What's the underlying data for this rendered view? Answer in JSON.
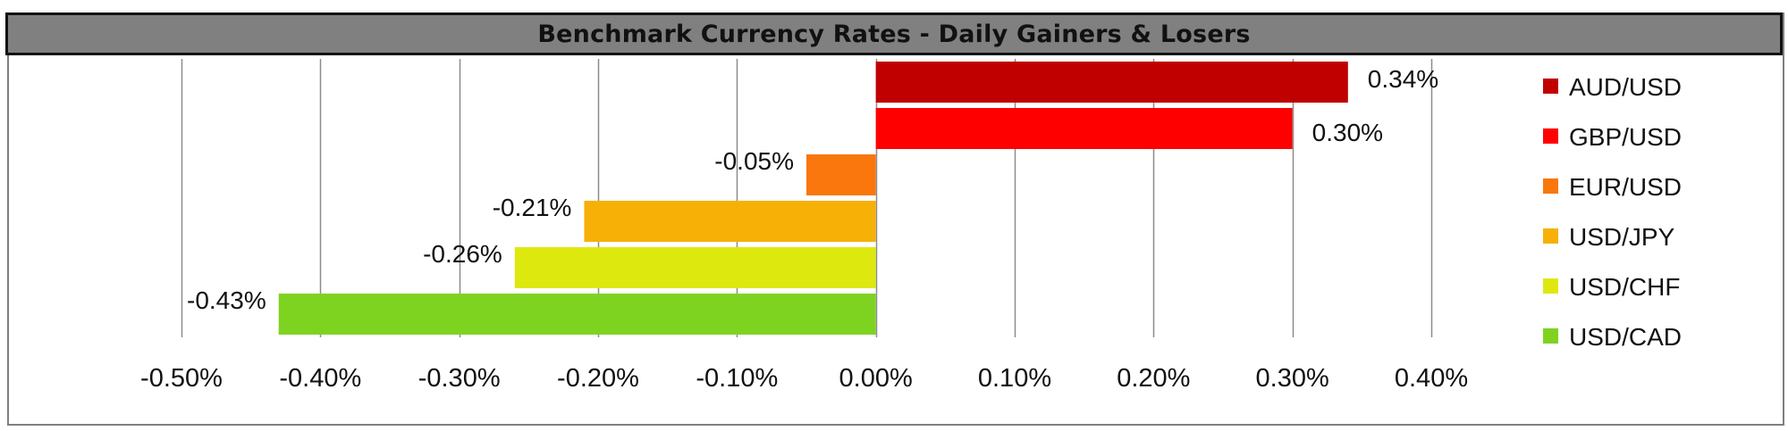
{
  "title": "Benchmark Currency Rates - Daily Gainers & Losers",
  "chart_data": {
    "type": "bar",
    "orientation": "horizontal",
    "title": "Benchmark Currency Rates - Daily Gainers & Losers",
    "categories": [
      "AUD/USD",
      "GBP/USD",
      "EUR/USD",
      "USD/JPY",
      "USD/CHF",
      "USD/CAD"
    ],
    "values": [
      0.34,
      0.3,
      -0.05,
      -0.21,
      -0.26,
      -0.43
    ],
    "value_labels": [
      "0.34%",
      "0.30%",
      "-0.05%",
      "-0.21%",
      "-0.26%",
      "-0.43%"
    ],
    "colors": [
      "#c00000",
      "#ff0000",
      "#f9770d",
      "#f7b006",
      "#dde90e",
      "#7ed321"
    ],
    "xlim": [
      -0.5,
      0.4
    ],
    "x_ticks": [
      -0.5,
      -0.4,
      -0.3,
      -0.2,
      -0.1,
      0.0,
      0.1,
      0.2,
      0.3,
      0.4
    ],
    "x_tick_labels": [
      "-0.50%",
      "-0.40%",
      "-0.30%",
      "-0.20%",
      "-0.10%",
      "0.00%",
      "0.10%",
      "0.20%",
      "0.30%",
      "0.40%"
    ],
    "xlabel": "",
    "ylabel": "",
    "grid": "vertical",
    "legend": "right"
  }
}
